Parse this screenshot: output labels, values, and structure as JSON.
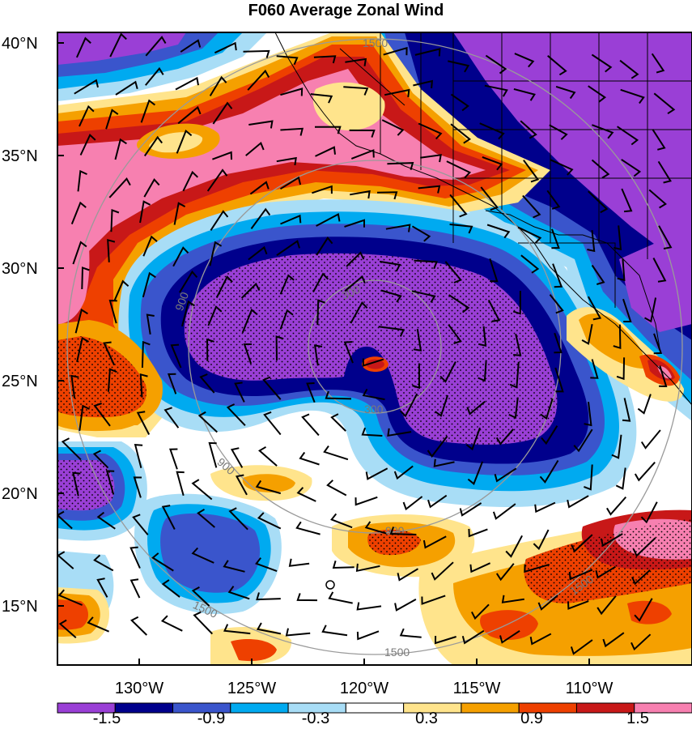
{
  "title": "F060 Average Zonal Wind",
  "axes": {
    "lat_labels": [
      "40°N",
      "35°N",
      "30°N",
      "25°N",
      "20°N",
      "15°N"
    ],
    "lon_labels": [
      "130°W",
      "125°W",
      "120°W",
      "115°W",
      "110°W"
    ]
  },
  "colorbar": {
    "labels": [
      "-1.5",
      "-0.9",
      "-0.3",
      "0.3",
      "0.9",
      "1.5"
    ],
    "colors": [
      "#9a3fd6",
      "#00008c",
      "#3a55cc",
      "#00aaf0",
      "#a8ddf6",
      "#ffffff",
      "#ffe48c",
      "#f5a000",
      "#ee4000",
      "#c81818",
      "#f780b0"
    ]
  },
  "range_rings": {
    "labels": [
      "300",
      "300",
      "900",
      "900",
      "900",
      "1500",
      "1500",
      "1500",
      "1500"
    ]
  },
  "colors": {
    "ring": "#9a9a9a",
    "coast": "#000000",
    "purple": "#9a3fd6",
    "navy": "#00008c",
    "blue": "#3a55cc",
    "cyan": "#00aaf0",
    "lightblue": "#a8ddf6",
    "yellow": "#ffe48c",
    "orange": "#f5a000",
    "red": "#ee4000",
    "darkred": "#c81818",
    "pink": "#f780b0"
  }
}
